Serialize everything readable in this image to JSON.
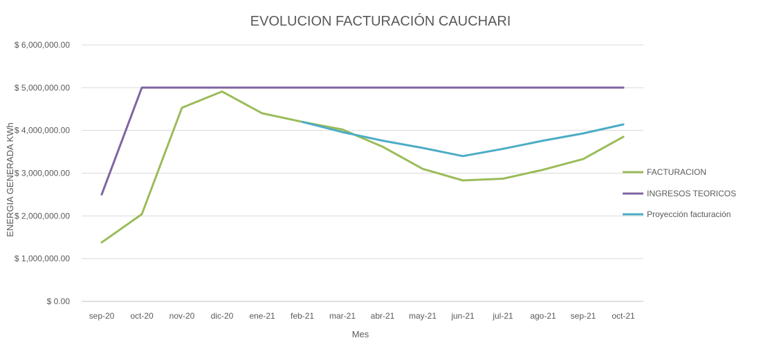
{
  "chart_data": {
    "type": "line",
    "title": "EVOLUCION FACTURACIÓN CAUCHARI",
    "xlabel": "Mes",
    "ylabel": "ENERGIA GENERADA KWh",
    "categories": [
      "sep-20",
      "oct-20",
      "nov-20",
      "dic-20",
      "ene-21",
      "feb-21",
      "mar-21",
      "abr-21",
      "may-21",
      "jun-21",
      "jul-21",
      "ago-21",
      "sep-21",
      "oct-21"
    ],
    "ylim": [
      0,
      6000000
    ],
    "yticks": [
      0,
      1000000,
      2000000,
      3000000,
      4000000,
      5000000,
      6000000
    ],
    "ytick_labels": [
      "$ 0.00",
      "$ 1,000,000.00",
      "$ 2,000,000.00",
      "$ 3,000,000.00",
      "$ 4,000,000.00",
      "$ 5,000,000.00",
      "$ 6,000,000.00"
    ],
    "grid": true,
    "legend_position": "right",
    "series": [
      {
        "name": "FACTURACION",
        "color": "#9bbb59",
        "values": [
          1380000,
          2040000,
          4530000,
          4910000,
          4400000,
          4200000,
          4020000,
          3620000,
          3100000,
          2830000,
          2870000,
          3080000,
          3330000,
          3850000
        ]
      },
      {
        "name": "INGRESOS TEORICOS",
        "color": "#8064a2",
        "values": [
          2500000,
          5000000,
          5000000,
          5000000,
          5000000,
          5000000,
          5000000,
          5000000,
          5000000,
          5000000,
          5000000,
          5000000,
          5000000,
          5000000
        ]
      },
      {
        "name": "Proyección facturación",
        "color": "#4bacc6",
        "values": [
          null,
          null,
          null,
          null,
          null,
          4200000,
          3960000,
          3760000,
          3590000,
          3400000,
          3570000,
          3760000,
          3930000,
          4140000
        ]
      }
    ]
  }
}
